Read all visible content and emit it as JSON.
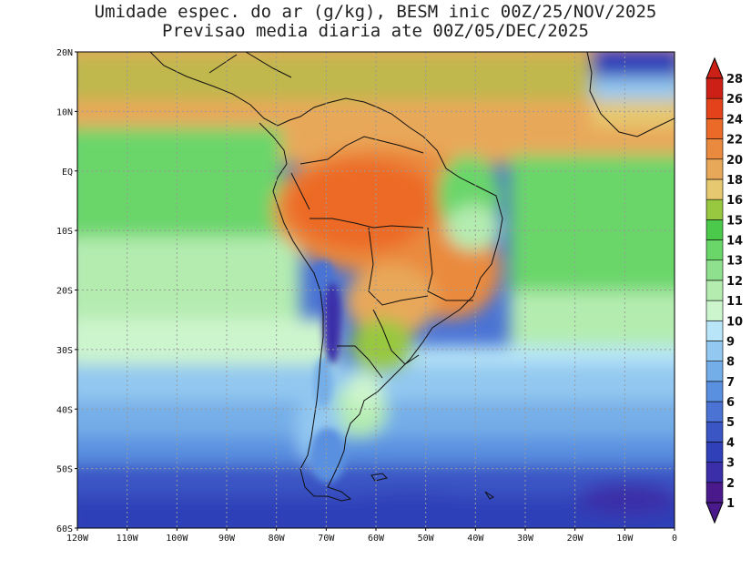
{
  "title_line1": "Umidade espec. do ar (g/kg), BESM inic 00Z/25/NOV/2025",
  "title_line2": "Previsao media diaria ate 00Z/05/DEC/2025",
  "lat_labels": [
    "20N",
    "10N",
    "EQ",
    "10S",
    "20S",
    "30S",
    "40S",
    "50S",
    "60S"
  ],
  "lon_labels": [
    "120W",
    "110W",
    "100W",
    "90W",
    "80W",
    "70W",
    "60W",
    "50W",
    "40W",
    "30W",
    "20W",
    "10W",
    "0"
  ],
  "colorbar": {
    "labels": [
      "1",
      "2",
      "3",
      "4",
      "5",
      "6",
      "7",
      "8",
      "9",
      "10",
      "11",
      "12",
      "13",
      "14",
      "15",
      "16",
      "18",
      "20",
      "22",
      "24",
      "26",
      "28"
    ],
    "colors": [
      "#4a1a8c",
      "#3a2fa8",
      "#2f40b8",
      "#3a55c4",
      "#4a73d4",
      "#5a90e0",
      "#74aee8",
      "#93c8f0",
      "#b8e6f8",
      "#cdf5cd",
      "#b4ecb0",
      "#8ee08e",
      "#6ad66a",
      "#4ac94a",
      "#98c840",
      "#e6c870",
      "#e8a85a",
      "#ea8a3e",
      "#ec6a28",
      "#e4421a",
      "#cc2016"
    ]
  },
  "colors": {
    "ocean_atlantic_north": "#e8a85a",
    "amazon_core": "#ec6a28",
    "pacific_tropical": "#6ad66a",
    "south_ocean": "#3a55c4",
    "andes_dry": "#3a2fa8",
    "grid_line": "#9a9a9a",
    "coast_line": "#111111"
  }
}
